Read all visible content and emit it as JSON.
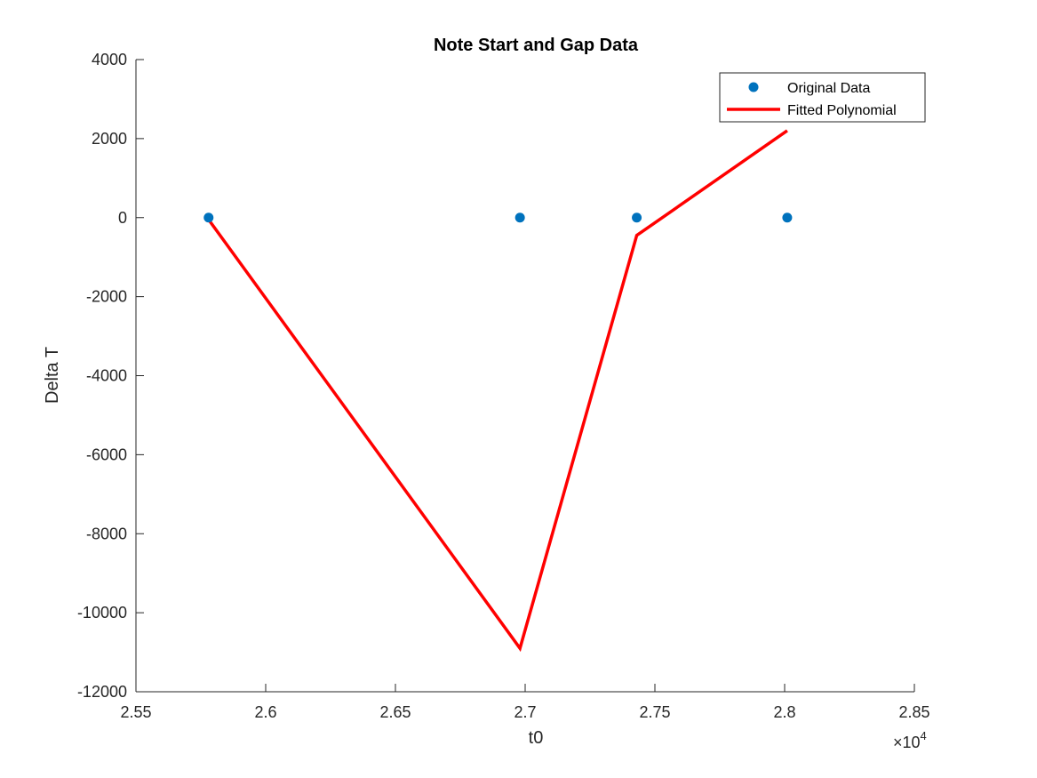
{
  "chart_data": {
    "type": "line",
    "title": "Note Start and Gap Data",
    "xlabel": "t0",
    "ylabel": "Delta T",
    "x_exponent_base": "×10",
    "x_exponent_power": "4",
    "xlim": [
      2.55,
      2.85
    ],
    "ylim": [
      -12000,
      4000
    ],
    "x_ticks": [
      2.55,
      2.6,
      2.65,
      2.7,
      2.75,
      2.8,
      2.85
    ],
    "x_tick_labels": [
      "2.55",
      "2.6",
      "2.65",
      "2.7",
      "2.75",
      "2.8",
      "2.85"
    ],
    "y_ticks": [
      4000,
      2000,
      0,
      -2000,
      -4000,
      -6000,
      -8000,
      -10000,
      -12000
    ],
    "y_tick_labels": [
      "4000",
      "2000",
      "0",
      "-2000",
      "-4000",
      "-6000",
      "-8000",
      "-10000",
      "-12000"
    ],
    "grid": false,
    "legend_position": "top-right",
    "series": [
      {
        "name": "Original Data",
        "style": "markers",
        "color": "#0072BD",
        "points": [
          {
            "x": 2.578,
            "y": 0
          },
          {
            "x": 2.698,
            "y": 0
          },
          {
            "x": 2.743,
            "y": 0
          },
          {
            "x": 2.801,
            "y": 0
          }
        ]
      },
      {
        "name": "Fitted Polynomial",
        "style": "line",
        "color": "#FF0000",
        "points": [
          {
            "x": 2.578,
            "y": -50
          },
          {
            "x": 2.698,
            "y": -10900
          },
          {
            "x": 2.743,
            "y": -450
          },
          {
            "x": 2.801,
            "y": 2200
          }
        ]
      }
    ]
  }
}
